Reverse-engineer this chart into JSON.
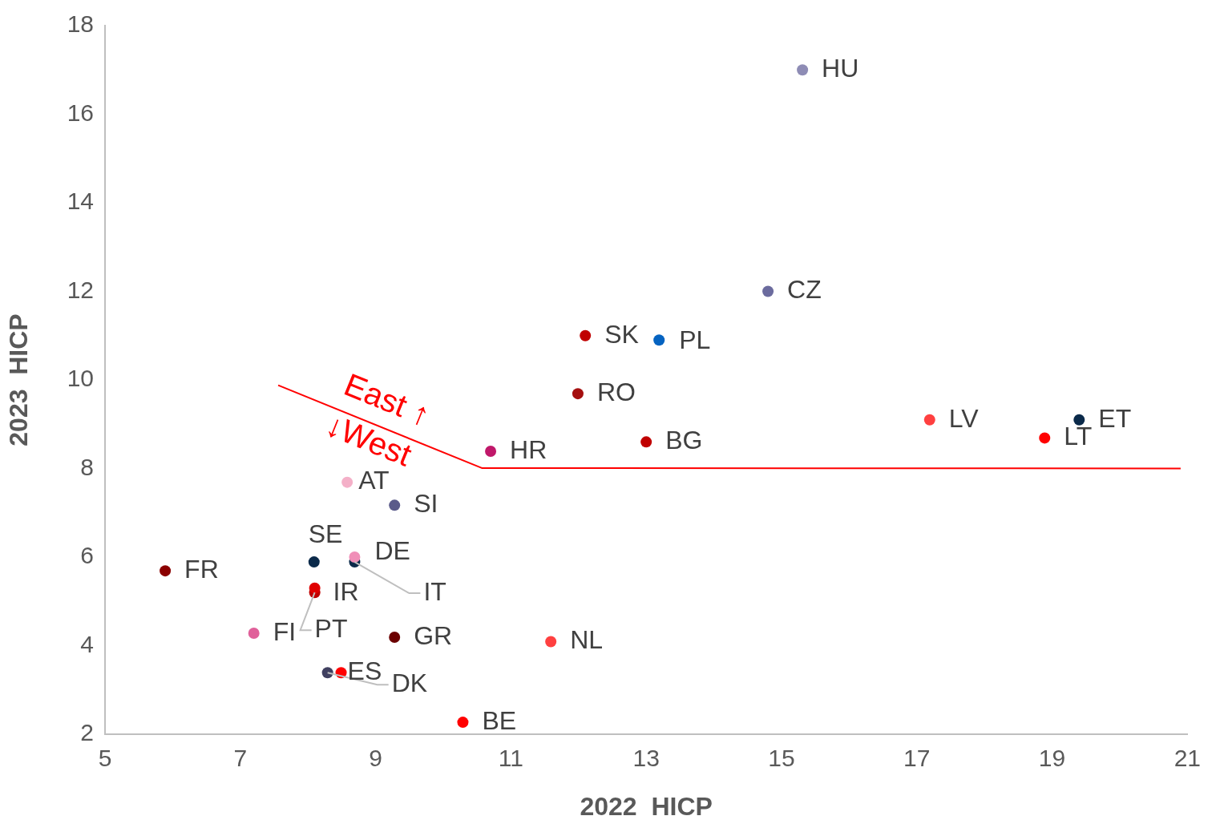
{
  "chart_data": {
    "type": "scatter",
    "xlabel": "2022  HICP",
    "ylabel": "2023  HICP",
    "xlim": [
      5,
      21
    ],
    "ylim": [
      2,
      18
    ],
    "xticks": [
      5,
      7,
      9,
      11,
      13,
      15,
      17,
      19,
      21
    ],
    "yticks": [
      2,
      4,
      6,
      8,
      10,
      12,
      14,
      16,
      18
    ],
    "grid": false,
    "legend": false,
    "marker": "circle",
    "series": [
      {
        "name": "HU",
        "color": "#8e8cb5",
        "x": [
          15.31
        ],
        "values": [
          17.0
        ]
      },
      {
        "name": "CZ",
        "color": "#6b6b9e",
        "x": [
          14.8
        ],
        "values": [
          12.0
        ]
      },
      {
        "name": "SK",
        "color": "#c00000",
        "x": [
          12.1
        ],
        "values": [
          11.0
        ]
      },
      {
        "name": "PL",
        "color": "#0563c1",
        "x": [
          13.19
        ],
        "values": [
          10.9
        ]
      },
      {
        "name": "RO",
        "color": "#a50f0f",
        "x": [
          11.99
        ],
        "values": [
          9.69
        ]
      },
      {
        "name": "LV",
        "color": "#ff4040",
        "x": [
          17.19
        ],
        "values": [
          9.1
        ]
      },
      {
        "name": "ET",
        "color": "#0b2a4a",
        "x": [
          19.4
        ],
        "values": [
          9.1
        ]
      },
      {
        "name": "LT",
        "color": "#ff0000",
        "x": [
          18.89
        ],
        "values": [
          8.69
        ]
      },
      {
        "name": "BG",
        "color": "#c00000",
        "x": [
          13.0
        ],
        "values": [
          8.6
        ]
      },
      {
        "name": "HR",
        "color": "#c0186a",
        "x": [
          10.7
        ],
        "values": [
          8.39
        ]
      },
      {
        "name": "AT",
        "color": "#f4b0c8",
        "x": [
          8.58
        ],
        "values": [
          7.69
        ]
      },
      {
        "name": "SI",
        "color": "#5a5a8a",
        "x": [
          9.28
        ],
        "values": [
          7.17
        ]
      },
      {
        "name": "SE",
        "color": "#0b2a4a",
        "x": [
          8.09
        ],
        "values": [
          5.89
        ]
      },
      {
        "name": "DE",
        "color": "#f08fb8",
        "x": [
          8.69
        ],
        "values": [
          6.0
        ]
      },
      {
        "name": "IT",
        "color": "#0b2a4a",
        "x": [
          8.69
        ],
        "values": [
          5.89
        ]
      },
      {
        "name": "FR",
        "color": "#8b0000",
        "x": [
          5.89
        ],
        "values": [
          5.69
        ]
      },
      {
        "name": "IR",
        "color": "#e00000",
        "x": [
          8.1
        ],
        "values": [
          5.3
        ]
      },
      {
        "name": "PT",
        "color": "#c00000",
        "x": [
          8.1
        ],
        "values": [
          5.2
        ]
      },
      {
        "name": "FI",
        "color": "#e0609a",
        "x": [
          7.2
        ],
        "values": [
          4.28
        ]
      },
      {
        "name": "GR",
        "color": "#6b0000",
        "x": [
          9.28
        ],
        "values": [
          4.19
        ]
      },
      {
        "name": "NL",
        "color": "#ff4040",
        "x": [
          11.59
        ],
        "values": [
          4.09
        ]
      },
      {
        "name": "DK",
        "color": "#404060",
        "x": [
          8.29
        ],
        "values": [
          3.39
        ]
      },
      {
        "name": "ES",
        "color": "#ff0000",
        "x": [
          8.49
        ],
        "values": [
          3.39
        ]
      },
      {
        "name": "BE",
        "color": "#ff0000",
        "x": [
          10.29
        ],
        "values": [
          2.27
        ]
      },
      {
        "type": "line",
        "color": "#ff0000",
        "marker": "none",
        "x": [
          7.56,
          10.57,
          20.9
        ],
        "values": [
          9.88,
          8.01,
          8.0
        ]
      }
    ],
    "annotations": [
      "East ↑",
      "↓West"
    ]
  }
}
